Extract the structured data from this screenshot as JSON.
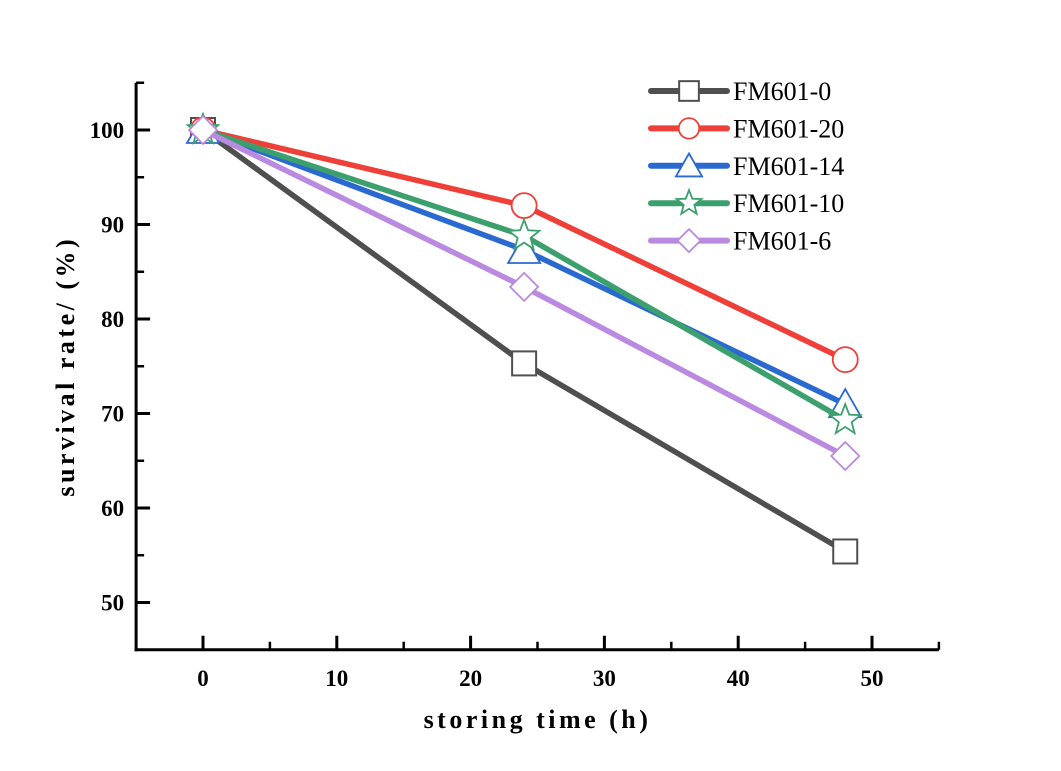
{
  "chart_data": {
    "type": "line",
    "title": "",
    "xlabel": "storing time（h）",
    "ylabel": "survival rate/（%）",
    "x": [
      0,
      24,
      48
    ],
    "series": [
      {
        "name": "FM601-0",
        "color": "#4f4f4f",
        "marker": "square",
        "values": [
          100,
          75.3,
          55.4
        ]
      },
      {
        "name": "FM601-20",
        "color": "#ee3f38",
        "marker": "circle",
        "values": [
          100,
          92.0,
          75.7
        ]
      },
      {
        "name": "FM601-14",
        "color": "#2a6ad0",
        "marker": "triangle",
        "values": [
          100,
          87.3,
          71.0
        ]
      },
      {
        "name": "FM601-10",
        "color": "#3ca06e",
        "marker": "star",
        "values": [
          100,
          88.8,
          69.3
        ]
      },
      {
        "name": "FM601-6",
        "color": "#b98ae0",
        "marker": "diamond",
        "values": [
          100,
          83.4,
          65.5
        ]
      }
    ],
    "xlim": [
      -5,
      55
    ],
    "ylim": [
      45,
      105
    ],
    "x_major_ticks": [
      0,
      10,
      20,
      30,
      40,
      50
    ],
    "x_minor_ticks": [
      5,
      15,
      25,
      35,
      45,
      55
    ],
    "y_major_ticks": [
      50,
      60,
      70,
      80,
      90,
      100
    ],
    "y_minor_ticks": [
      55,
      65,
      75,
      85,
      95,
      105
    ],
    "grid": false,
    "legend_position": "top-right",
    "axis_color": "#000000",
    "background": "#ffffff"
  }
}
